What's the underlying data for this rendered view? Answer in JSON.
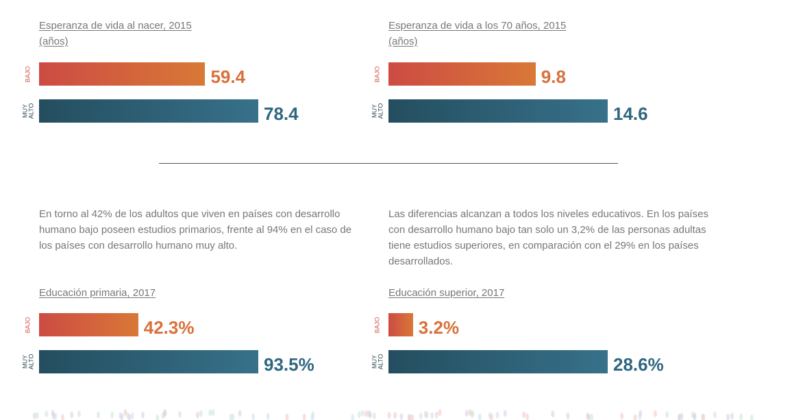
{
  "chart_data": [
    {
      "type": "bar",
      "title": "Esperanza de vida al nacer, 2015",
      "subtitle": "(años)",
      "categories": [
        "BAJO",
        "MUY ALTO"
      ],
      "values": [
        59.4,
        78.4
      ],
      "labels": [
        "59.4",
        "78.4"
      ]
    },
    {
      "type": "bar",
      "title": "Esperanza de vida a los 70 años, 2015",
      "subtitle": "(años)",
      "categories": [
        "BAJO",
        "MUY ALTO"
      ],
      "values": [
        9.8,
        14.6
      ],
      "labels": [
        "9.8",
        "14.6"
      ]
    },
    {
      "type": "bar",
      "title": "Educación primaria, 2017",
      "categories": [
        "BAJO",
        "MUY ALTO"
      ],
      "values": [
        42.3,
        93.5
      ],
      "labels": [
        "42.3%",
        "93.5%"
      ]
    },
    {
      "type": "bar",
      "title": "Educación superior, 2017",
      "categories": [
        "BAJO",
        "MUY ALTO"
      ],
      "values": [
        3.2,
        28.6
      ],
      "labels": [
        "3.2%",
        "28.6%"
      ]
    }
  ],
  "text": {
    "left": "En torno al 42% de los adultos que viven en países con desarrollo humano bajo poseen estudios primarios, frente al 94% en el caso de los países con desarrollo humano muy alto.",
    "right": "Las diferencias alcanzan a todos los niveles educativos. En los países con desarrollo humano bajo tan solo un 3,2% de las personas adultas tiene estudios superiores, en comparación con el 29% en los países desarrollados."
  },
  "colors": {
    "low": "#d9703a",
    "high": "#2f6780"
  }
}
